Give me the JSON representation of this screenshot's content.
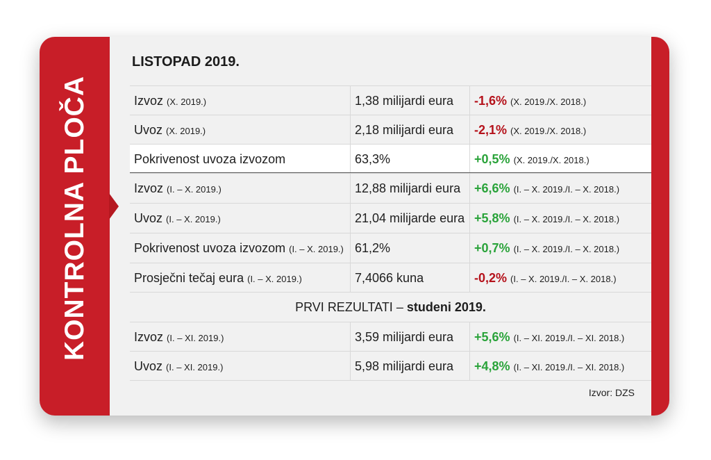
{
  "side_title": "KONTROLNA PLOČA",
  "period_title": "LISTOPAD 2019.",
  "rows": [
    {
      "label": "Izvoz",
      "label_note": "(X. 2019.)",
      "value": "1,38 milijardi eura",
      "change": "-1,6%",
      "change_note": "(X. 2019./X. 2018.)",
      "sign": "neg"
    },
    {
      "label": "Uvoz",
      "label_note": "(X. 2019.)",
      "value": "2,18 milijardi eura",
      "change": "-2,1%",
      "change_note": "(X. 2019./X. 2018.)",
      "sign": "neg"
    },
    {
      "label": "Pokrivenost uvoza izvozom",
      "label_note": "",
      "value": "63,3%",
      "change": "+0,5%",
      "change_note": "(X. 2019./X. 2018.)",
      "sign": "pos"
    },
    {
      "label": "Izvoz",
      "label_note": "(I. – X. 2019.)",
      "value": "12,88 milijardi eura",
      "change": "+6,6%",
      "change_note": "(I. – X. 2019./I. – X. 2018.)",
      "sign": "pos"
    },
    {
      "label": "Uvoz",
      "label_note": "(I. – X. 2019.)",
      "value": "21,04 milijarde eura",
      "change": "+5,8%",
      "change_note": "(I. – X. 2019./I. – X. 2018.)",
      "sign": "pos"
    },
    {
      "label": "Pokrivenost uvoza izvozom",
      "label_note": "(I. – X. 2019.)",
      "value": "61,2%",
      "change": "+0,7%",
      "change_note": "(I. – X. 2019./I. – X. 2018.)",
      "sign": "pos"
    },
    {
      "label": "Prosječni tečaj eura",
      "label_note": "(I. – X. 2019.)",
      "value": "7,4066 kuna",
      "change": "-0,2%",
      "change_note": "(I. – X. 2019./I. – X. 2018.)",
      "sign": "neg"
    }
  ],
  "subheading": {
    "prefix": "PRVI REZULTATI – ",
    "bold": "studeni 2019."
  },
  "rows2": [
    {
      "label": "Izvoz",
      "label_note": "(I. – XI. 2019.)",
      "value": "3,59 milijardi eura",
      "change": "+5,6%",
      "change_note": "(I. – XI. 2019./I. – XI. 2018.)",
      "sign": "pos"
    },
    {
      "label": "Uvoz",
      "label_note": "(I. – XI. 2019.)",
      "value": "5,98 milijardi eura",
      "change": "+4,8%",
      "change_note": "(I. – XI. 2019./I. – XI. 2018.)",
      "sign": "pos"
    }
  ],
  "source": "Izvor: DZS",
  "colors": {
    "brand_red": "#c81e28",
    "negative": "#b5121b",
    "positive": "#2aa33a"
  }
}
